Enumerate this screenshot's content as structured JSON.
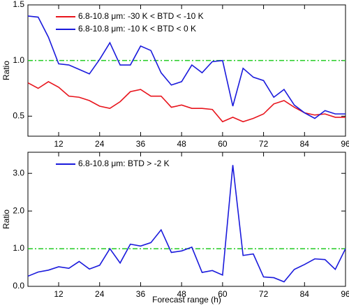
{
  "chart_data": [
    {
      "type": "line",
      "ylabel": "Ratio",
      "x": [
        3,
        6,
        9,
        12,
        15,
        18,
        21,
        24,
        27,
        30,
        33,
        36,
        39,
        42,
        45,
        48,
        51,
        54,
        57,
        60,
        63,
        66,
        69,
        72,
        75,
        78,
        81,
        84,
        87,
        90,
        93,
        96
      ],
      "series": [
        {
          "name": "6.8-10.8 μm: -30 K < BTD < -10 K",
          "color": "#e8141c",
          "values": [
            0.8,
            0.75,
            0.81,
            0.76,
            0.68,
            0.67,
            0.64,
            0.59,
            0.57,
            0.63,
            0.72,
            0.74,
            0.68,
            0.68,
            0.58,
            0.6,
            0.57,
            0.57,
            0.56,
            0.45,
            0.49,
            0.45,
            0.48,
            0.52,
            0.61,
            0.64,
            0.58,
            0.53,
            0.51,
            0.52,
            0.49,
            0.49
          ]
        },
        {
          "name": "6.8-10.8 μm: -10 K < BTD < 0 K",
          "color": "#1a1adc",
          "values": [
            1.4,
            1.39,
            1.21,
            0.97,
            0.96,
            0.92,
            0.88,
            1.01,
            1.16,
            0.96,
            0.96,
            1.13,
            1.09,
            0.89,
            0.78,
            0.81,
            0.96,
            0.89,
            0.99,
            1.0,
            0.59,
            0.93,
            0.85,
            0.82,
            0.67,
            0.74,
            0.6,
            0.53,
            0.48,
            0.55,
            0.52,
            0.52
          ]
        }
      ],
      "xlim": [
        3,
        96
      ],
      "ylim": [
        0.32,
        1.5
      ],
      "xticks": [
        12,
        24,
        36,
        48,
        60,
        72,
        84,
        96
      ],
      "yticks": [
        {
          "value": 0.5,
          "label": "0.5"
        },
        {
          "value": 1,
          "label": "1.0"
        },
        {
          "value": 1.5,
          "label": "1.5"
        }
      ],
      "reference_line": {
        "value": 1,
        "color": "#22cc22"
      }
    },
    {
      "type": "line",
      "ylabel": "Ratio",
      "xlabel": "Forecast range (h)",
      "x": [
        3,
        6,
        9,
        12,
        15,
        18,
        21,
        24,
        27,
        30,
        33,
        36,
        39,
        42,
        45,
        48,
        51,
        54,
        57,
        60,
        63,
        66,
        69,
        72,
        75,
        78,
        81,
        84,
        87,
        90,
        93,
        96
      ],
      "series": [
        {
          "name": "6.8-10.8 μm: BTD > -2 K",
          "color": "#1a1adc",
          "values": [
            0.27,
            0.38,
            0.43,
            0.52,
            0.48,
            0.66,
            0.46,
            0.56,
            1.0,
            0.62,
            1.12,
            1.07,
            1.16,
            1.5,
            0.9,
            0.94,
            1.04,
            0.37,
            0.42,
            0.3,
            3.22,
            0.82,
            0.86,
            0.25,
            0.23,
            0.12,
            0.45,
            0.58,
            0.73,
            0.71,
            0.45,
            1.0
          ]
        }
      ],
      "xlim": [
        3,
        96
      ],
      "ylim": [
        0,
        3.56
      ],
      "xticks": [
        12,
        24,
        36,
        48,
        60,
        72,
        84,
        96
      ],
      "yticks": [
        {
          "value": 0,
          "label": "0.0"
        },
        {
          "value": 1,
          "label": "1.0"
        },
        {
          "value": 2,
          "label": "2.0"
        },
        {
          "value": 3,
          "label": "3.0"
        }
      ],
      "reference_line": {
        "value": 1,
        "color": "#22cc22"
      }
    }
  ]
}
